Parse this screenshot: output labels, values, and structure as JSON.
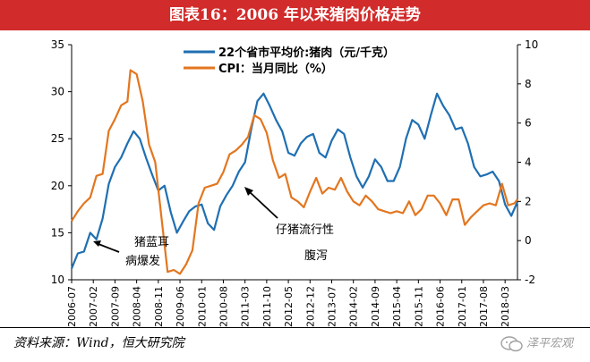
{
  "title": "图表16：2006 年以来猪肉价格走势",
  "source": "资料来源：Wind，恒大研究院",
  "watermark": "泽平宏观",
  "colors": {
    "pork": "#1f6fb2",
    "cpi": "#e3761f",
    "title_bg": "#d22b2b"
  },
  "chart_data": {
    "type": "line",
    "x_tick_labels": [
      "2006-07",
      "2007-02",
      "2007-09",
      "2008-04",
      "2008-11",
      "2009-06",
      "2010-01",
      "2010-08",
      "2011-03",
      "2011-10",
      "2012-05",
      "2012-12",
      "2013-07",
      "2014-02",
      "2014-09",
      "2015-04",
      "2015-11",
      "2016-06",
      "2017-01",
      "2017-08",
      "2018-03"
    ],
    "y_left": {
      "ticks": [
        10,
        15,
        20,
        25,
        30,
        35
      ],
      "range": [
        10,
        35
      ]
    },
    "y_right": {
      "ticks": [
        -2,
        0,
        2,
        4,
        6,
        8,
        10
      ],
      "range": [
        -2,
        10
      ]
    },
    "legend": [
      "22个省市平均价:猪肉（元/千克）",
      "CPI：当月同比（%）"
    ],
    "legend_position": "top",
    "annotations": [
      "猪蓝耳",
      "病爆发",
      "仔猪流行性",
      "腹泻"
    ],
    "series": [
      {
        "name": "22个省市平均价:猪肉（元/千克）",
        "axis": "left",
        "x": [
          "2006-07",
          "2006-09",
          "2006-11",
          "2007-01",
          "2007-03",
          "2007-05",
          "2007-07",
          "2007-09",
          "2007-11",
          "2008-01",
          "2008-03",
          "2008-05",
          "2008-07",
          "2008-09",
          "2008-11",
          "2009-01",
          "2009-03",
          "2009-05",
          "2009-07",
          "2009-09",
          "2009-11",
          "2010-01",
          "2010-03",
          "2010-05",
          "2010-07",
          "2010-09",
          "2010-11",
          "2011-01",
          "2011-03",
          "2011-05",
          "2011-07",
          "2011-09",
          "2011-11",
          "2012-01",
          "2012-03",
          "2012-05",
          "2012-07",
          "2012-09",
          "2012-11",
          "2013-01",
          "2013-03",
          "2013-05",
          "2013-07",
          "2013-09",
          "2013-11",
          "2014-01",
          "2014-03",
          "2014-05",
          "2014-07",
          "2014-09",
          "2014-11",
          "2015-01",
          "2015-03",
          "2015-05",
          "2015-07",
          "2015-09",
          "2015-11",
          "2016-01",
          "2016-03",
          "2016-05",
          "2016-07",
          "2016-09",
          "2016-11",
          "2017-01",
          "2017-03",
          "2017-05",
          "2017-07",
          "2017-09",
          "2017-11",
          "2018-01",
          "2018-03",
          "2018-05",
          "2018-07"
        ],
        "y": [
          11.2,
          12.8,
          13.0,
          15.0,
          14.3,
          16.5,
          20.2,
          22.0,
          23.0,
          24.5,
          25.8,
          25.0,
          23.0,
          21.2,
          19.5,
          20.0,
          17.2,
          15.0,
          16.2,
          17.3,
          17.8,
          18.0,
          16.0,
          15.3,
          17.8,
          19.0,
          20.0,
          21.5,
          22.5,
          26.0,
          29.0,
          29.8,
          28.5,
          27.0,
          25.8,
          23.5,
          23.2,
          24.5,
          25.2,
          25.5,
          23.5,
          23.0,
          24.8,
          26.0,
          25.5,
          23.0,
          21.0,
          19.8,
          21.0,
          22.8,
          22.0,
          20.5,
          20.5,
          22.0,
          25.0,
          27.0,
          26.5,
          25.0,
          27.5,
          29.8,
          28.5,
          27.5,
          26.0,
          26.2,
          24.5,
          22.0,
          21.0,
          21.2,
          21.5,
          20.5,
          18.0,
          16.8,
          18.3
        ]
      },
      {
        "name": "CPI：当月同比（%）",
        "axis": "right",
        "x": [
          "2006-07",
          "2006-09",
          "2006-11",
          "2007-01",
          "2007-03",
          "2007-05",
          "2007-07",
          "2007-09",
          "2007-11",
          "2008-01",
          "2008-02",
          "2008-04",
          "2008-06",
          "2008-08",
          "2008-10",
          "2008-12",
          "2009-02",
          "2009-04",
          "2009-06",
          "2009-08",
          "2009-10",
          "2009-12",
          "2010-02",
          "2010-04",
          "2010-06",
          "2010-08",
          "2010-10",
          "2010-12",
          "2011-02",
          "2011-04",
          "2011-06",
          "2011-08",
          "2011-10",
          "2011-12",
          "2012-02",
          "2012-04",
          "2012-06",
          "2012-08",
          "2012-10",
          "2012-12",
          "2013-02",
          "2013-04",
          "2013-06",
          "2013-08",
          "2013-10",
          "2013-12",
          "2014-02",
          "2014-04",
          "2014-06",
          "2014-08",
          "2014-10",
          "2014-12",
          "2015-02",
          "2015-04",
          "2015-06",
          "2015-08",
          "2015-10",
          "2015-12",
          "2016-02",
          "2016-04",
          "2016-06",
          "2016-08",
          "2016-10",
          "2016-12",
          "2017-02",
          "2017-04",
          "2017-06",
          "2017-08",
          "2017-10",
          "2017-12",
          "2018-02",
          "2018-04",
          "2018-06",
          "2018-07"
        ],
        "y": [
          1.0,
          1.5,
          1.9,
          2.2,
          3.3,
          3.4,
          5.6,
          6.2,
          6.9,
          7.1,
          8.7,
          8.5,
          7.1,
          4.9,
          4.0,
          1.2,
          -1.6,
          -1.5,
          -1.7,
          -1.2,
          -0.5,
          1.9,
          2.7,
          2.8,
          2.9,
          3.5,
          4.4,
          4.6,
          4.9,
          5.3,
          6.4,
          6.2,
          5.5,
          4.1,
          3.2,
          3.4,
          2.2,
          2.0,
          1.7,
          2.5,
          3.2,
          2.4,
          2.7,
          2.6,
          3.2,
          2.5,
          2.0,
          1.8,
          2.3,
          2.0,
          1.6,
          1.5,
          1.4,
          1.5,
          1.4,
          2.0,
          1.3,
          1.6,
          2.3,
          2.3,
          1.9,
          1.3,
          2.1,
          2.1,
          0.8,
          1.2,
          1.5,
          1.8,
          1.9,
          1.8,
          2.9,
          1.8,
          1.9,
          2.1
        ]
      }
    ]
  }
}
